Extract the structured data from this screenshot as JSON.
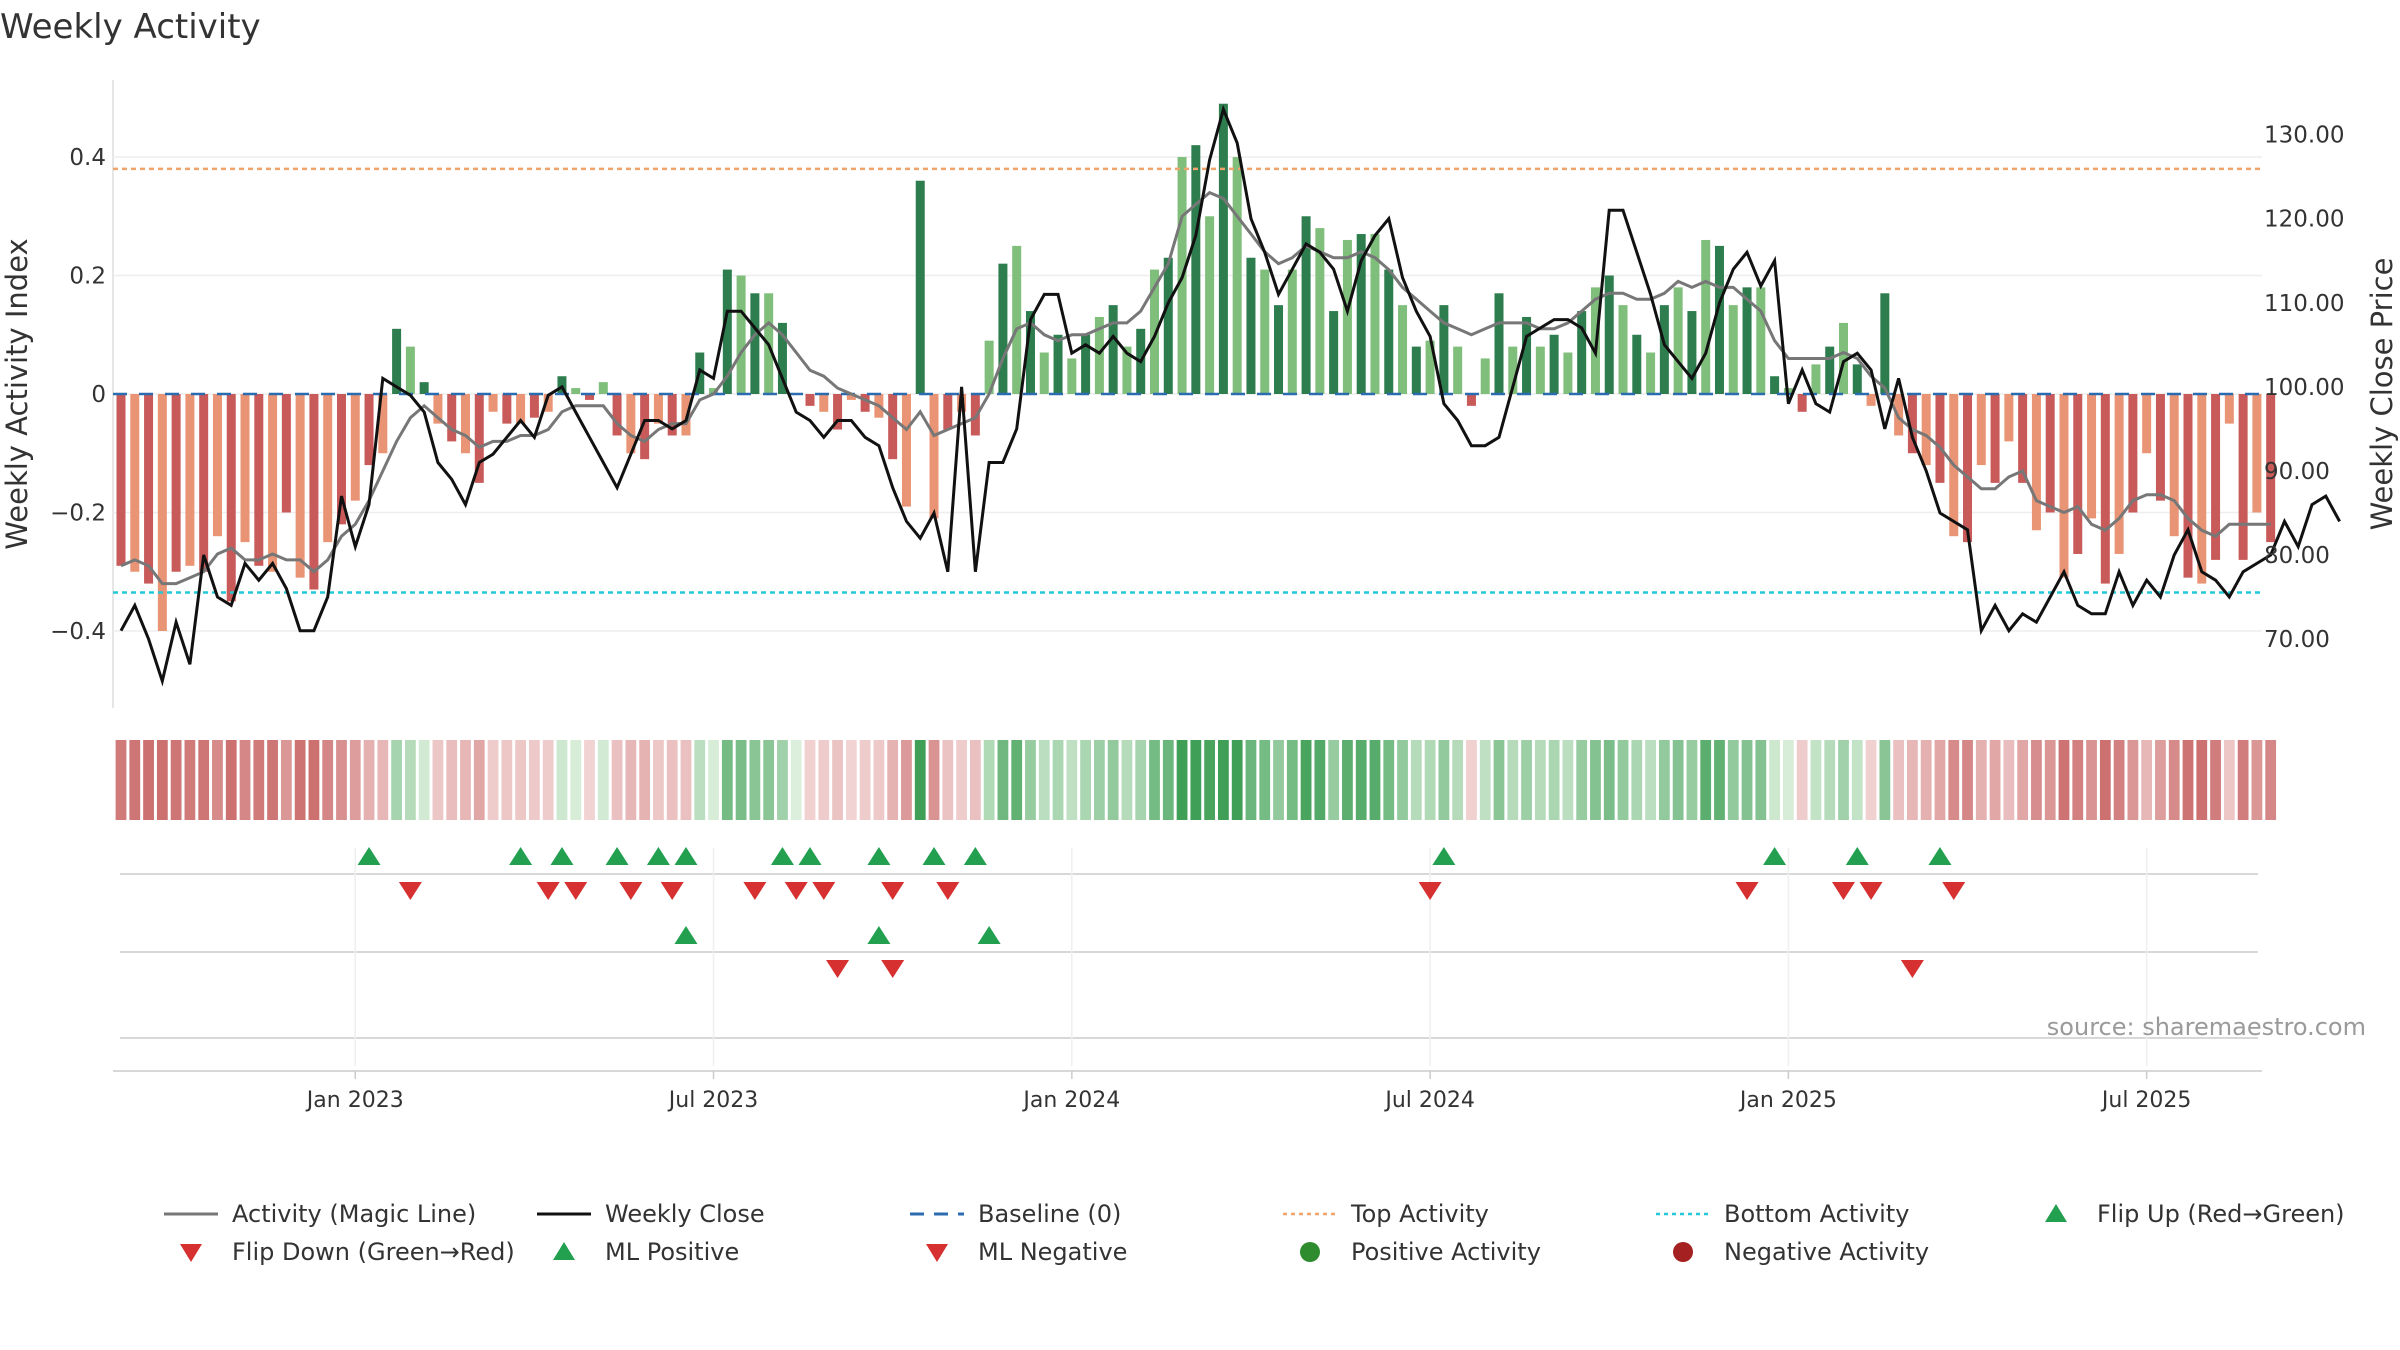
{
  "chart_data": {
    "type": "bar",
    "title": "Weekly Activity",
    "ylabel": "Weekly Activity Index",
    "y2label": "Weekly Close Price",
    "source_note": "source: sharemaestro.com",
    "ylim": [
      -0.53,
      0.53
    ],
    "y2lim": [
      61.8,
      136.5
    ],
    "yticks": [
      {
        "v": 0.4,
        "label": "0.4"
      },
      {
        "v": 0.2,
        "label": "0.2"
      },
      {
        "v": 0,
        "label": "0"
      },
      {
        "v": -0.2,
        "label": "−0.2"
      },
      {
        "v": -0.4,
        "label": "−0.4"
      }
    ],
    "y2ticks": [
      {
        "v": 130,
        "label": "130.00"
      },
      {
        "v": 120,
        "label": "120.00"
      },
      {
        "v": 110,
        "label": "110.00"
      },
      {
        "v": 100,
        "label": "100.00"
      },
      {
        "v": 90,
        "label": "90.00"
      },
      {
        "v": 80,
        "label": "80.00"
      },
      {
        "v": 70,
        "label": "70.00"
      }
    ],
    "xticks": [
      {
        "i": 17,
        "label": "Jan 2023"
      },
      {
        "i": 43,
        "label": "Jul 2023"
      },
      {
        "i": 69,
        "label": "Jan 2024"
      },
      {
        "i": 95,
        "label": "Jul 2024"
      },
      {
        "i": 121,
        "label": "Jan 2025"
      },
      {
        "i": 147,
        "label": "Jul 2025"
      }
    ],
    "top_activity": 0.38,
    "bottom_activity": -0.335,
    "baseline": 0,
    "activity": [
      -0.29,
      -0.3,
      -0.32,
      -0.4,
      -0.3,
      -0.29,
      -0.3,
      -0.24,
      -0.35,
      -0.25,
      -0.29,
      -0.3,
      -0.2,
      -0.31,
      -0.33,
      -0.25,
      -0.22,
      -0.18,
      -0.12,
      -0.1,
      0.11,
      0.08,
      0.02,
      -0.05,
      -0.08,
      -0.1,
      -0.15,
      -0.03,
      -0.05,
      -0.05,
      -0.04,
      -0.03,
      0.03,
      0.01,
      -0.01,
      0.02,
      -0.07,
      -0.1,
      -0.11,
      -0.05,
      -0.07,
      -0.07,
      0.07,
      0.01,
      0.21,
      0.2,
      0.17,
      0.17,
      0.12,
      0.0,
      -0.02,
      -0.03,
      -0.06,
      -0.01,
      -0.03,
      -0.04,
      -0.11,
      -0.19,
      0.36,
      -0.21,
      -0.06,
      -0.03,
      -0.07,
      0.09,
      0.22,
      0.25,
      0.14,
      0.07,
      0.1,
      0.06,
      0.1,
      0.13,
      0.15,
      0.08,
      0.11,
      0.21,
      0.23,
      0.4,
      0.42,
      0.3,
      0.49,
      0.4,
      0.23,
      0.21,
      0.15,
      0.21,
      0.3,
      0.28,
      0.14,
      0.26,
      0.27,
      0.27,
      0.21,
      0.15,
      0.08,
      0.09,
      0.15,
      0.08,
      -0.02,
      0.06,
      0.17,
      0.08,
      0.13,
      0.08,
      0.1,
      0.07,
      0.14,
      0.18,
      0.2,
      0.15,
      0.1,
      0.07,
      0.15,
      0.18,
      0.14,
      0.26,
      0.25,
      0.15,
      0.18,
      0.18,
      0.03,
      0.01,
      -0.03,
      0.05,
      0.08,
      0.12,
      0.05,
      -0.02,
      0.17,
      -0.07,
      -0.1,
      -0.12,
      -0.15,
      -0.24,
      -0.25,
      -0.12,
      -0.15,
      -0.08,
      -0.15,
      -0.23,
      -0.2,
      -0.31,
      -0.27,
      -0.21,
      -0.32,
      -0.27,
      -0.2,
      -0.1,
      -0.18,
      -0.24,
      -0.31,
      -0.32,
      -0.28,
      -0.05,
      -0.28,
      -0.2,
      -0.25
    ],
    "magic_line": [
      -0.29,
      -0.28,
      -0.29,
      -0.32,
      -0.32,
      -0.31,
      -0.3,
      -0.27,
      -0.26,
      -0.28,
      -0.28,
      -0.27,
      -0.28,
      -0.28,
      -0.3,
      -0.28,
      -0.24,
      -0.22,
      -0.18,
      -0.13,
      -0.08,
      -0.04,
      -0.02,
      -0.04,
      -0.06,
      -0.07,
      -0.09,
      -0.08,
      -0.08,
      -0.07,
      -0.07,
      -0.06,
      -0.03,
      -0.02,
      -0.02,
      -0.02,
      -0.05,
      -0.07,
      -0.08,
      -0.06,
      -0.05,
      -0.05,
      -0.01,
      0.0,
      0.03,
      0.07,
      0.1,
      0.12,
      0.1,
      0.07,
      0.04,
      0.03,
      0.01,
      0.0,
      -0.01,
      -0.02,
      -0.04,
      -0.06,
      -0.03,
      -0.07,
      -0.06,
      -0.05,
      -0.04,
      0.0,
      0.06,
      0.11,
      0.12,
      0.1,
      0.09,
      0.1,
      0.1,
      0.11,
      0.12,
      0.12,
      0.14,
      0.18,
      0.22,
      0.3,
      0.32,
      0.34,
      0.33,
      0.3,
      0.27,
      0.24,
      0.22,
      0.23,
      0.25,
      0.24,
      0.23,
      0.23,
      0.24,
      0.23,
      0.21,
      0.18,
      0.16,
      0.14,
      0.12,
      0.11,
      0.1,
      0.11,
      0.12,
      0.12,
      0.12,
      0.11,
      0.11,
      0.12,
      0.14,
      0.16,
      0.17,
      0.17,
      0.16,
      0.16,
      0.17,
      0.19,
      0.18,
      0.19,
      0.18,
      0.18,
      0.16,
      0.14,
      0.09,
      0.06,
      0.06,
      0.06,
      0.06,
      0.07,
      0.06,
      0.03,
      0.01,
      -0.04,
      -0.06,
      -0.07,
      -0.09,
      -0.12,
      -0.14,
      -0.16,
      -0.16,
      -0.14,
      -0.13,
      -0.18,
      -0.19,
      -0.2,
      -0.19,
      -0.22,
      -0.23,
      -0.21,
      -0.18,
      -0.17,
      -0.17,
      -0.18,
      -0.21,
      -0.23,
      -0.24,
      -0.22,
      -0.22,
      -0.22,
      -0.22
    ],
    "weekly_close": [
      71,
      74,
      70,
      65,
      72,
      67,
      80,
      75,
      74,
      79,
      77,
      79,
      76,
      71,
      71,
      75,
      87,
      81,
      86,
      101,
      100,
      99,
      97,
      91,
      89,
      86,
      91,
      92,
      94,
      96,
      94,
      99,
      100,
      97,
      94,
      91,
      88,
      92,
      96,
      96,
      95,
      96,
      102,
      101,
      109,
      109,
      107,
      105,
      101,
      97,
      96,
      94,
      96,
      96,
      94,
      93,
      88,
      84,
      82,
      85,
      78,
      100,
      78,
      91,
      91,
      95,
      108,
      111,
      111,
      104,
      105,
      104,
      106,
      104,
      103,
      106,
      110,
      113,
      118,
      127,
      133,
      129,
      120,
      116,
      111,
      114,
      117,
      116,
      114,
      109,
      115,
      118,
      120,
      113,
      109,
      106,
      98,
      96,
      93,
      93,
      94,
      100,
      106,
      107,
      108,
      108,
      107,
      104,
      121,
      121,
      116,
      111,
      105,
      103,
      101,
      104,
      110,
      114,
      116,
      112,
      115,
      98,
      102,
      98,
      97,
      103,
      104,
      102,
      95,
      101,
      94,
      90,
      85,
      84,
      83,
      71,
      74,
      71,
      73,
      72,
      75,
      78,
      74,
      73,
      73,
      78,
      74,
      77,
      75,
      80,
      83,
      78,
      77,
      75,
      78,
      79,
      80,
      84,
      81,
      86,
      87,
      84
    ],
    "heat_strip": "one cell per week, colour follows activity",
    "signal_rows": {
      "flip_up": [
        18,
        29,
        32,
        36,
        39,
        41,
        48,
        50,
        55,
        59,
        62,
        96,
        120,
        126,
        132
      ],
      "flip_down": [
        21,
        31,
        33,
        37,
        40,
        46,
        49,
        51,
        56,
        60,
        95,
        118,
        125,
        127,
        133
      ],
      "ml_positive": [
        41,
        55,
        63
      ],
      "ml_negative": [
        52,
        56,
        130
      ]
    },
    "legend": [
      {
        "key": "magic",
        "label": "Activity (Magic Line)"
      },
      {
        "key": "close",
        "label": "Weekly Close"
      },
      {
        "key": "baseline",
        "label": "Baseline (0)"
      },
      {
        "key": "top",
        "label": "Top Activity"
      },
      {
        "key": "bottom",
        "label": "Bottom Activity"
      },
      {
        "key": "flipup",
        "label": "Flip Up (Red→Green)"
      },
      {
        "key": "flipdown",
        "label": "Flip Down (Green→Red)"
      },
      {
        "key": "mlpos",
        "label": "ML Positive"
      },
      {
        "key": "mlneg",
        "label": "ML Negative"
      },
      {
        "key": "posact",
        "label": "Positive Activity"
      },
      {
        "key": "negact",
        "label": "Negative Activity"
      }
    ]
  },
  "colors": {
    "pos_strong": "#2e7d4f",
    "pos_light": "#7fbf7b",
    "neg_strong": "#c85a5a",
    "neg_light": "#e99474",
    "magic": "#777777",
    "close": "#111111",
    "baseline": "#2b6cb0",
    "top": "#f0a36a",
    "bottom": "#22c8d8",
    "flip_up": "#22a050",
    "flip_down": "#d63030",
    "pos_dot": "#2e8b2e",
    "neg_dot": "#a52020",
    "text": "#333333"
  }
}
